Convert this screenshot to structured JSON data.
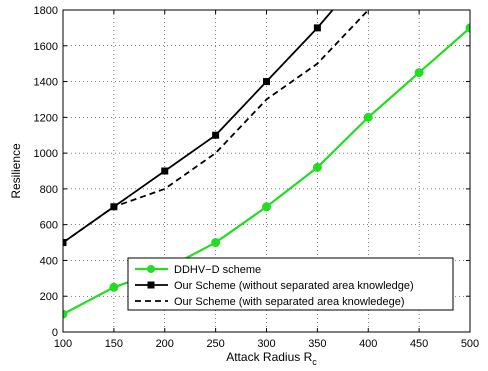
{
  "chart_data": {
    "type": "line",
    "xlabel": "Attack Radius R",
    "xlabel_subscript": "c",
    "ylabel": "Resilience",
    "xlim": [
      100,
      500
    ],
    "ylim": [
      0,
      1800
    ],
    "xticks": [
      100,
      150,
      200,
      250,
      300,
      350,
      400,
      450,
      500
    ],
    "yticks": [
      0,
      200,
      400,
      600,
      800,
      1000,
      1200,
      1400,
      1600,
      1800
    ],
    "grid": "dotted",
    "legend_position": "bottom-center",
    "series": [
      {
        "name": "DDHV−D scheme",
        "color": "#22dd22",
        "style": "solid",
        "marker": "circle",
        "x": [
          100,
          150,
          200,
          250,
          300,
          350,
          400,
          450,
          500
        ],
        "y": [
          100,
          250,
          350,
          500,
          700,
          920,
          1200,
          1450,
          1700
        ]
      },
      {
        "name": "Our Scheme (without separated area knowledge)",
        "color": "#000000",
        "style": "solid",
        "marker": "square",
        "x": [
          100,
          150,
          200,
          250,
          300,
          350,
          380
        ],
        "y": [
          500,
          700,
          900,
          1100,
          1400,
          1700,
          1900
        ]
      },
      {
        "name": "Our Scheme (with separated area knowledege)",
        "color": "#000000",
        "style": "dashed",
        "marker": "none",
        "x": [
          100,
          150,
          200,
          250,
          300,
          350,
          400,
          420
        ],
        "y": [
          500,
          700,
          800,
          1000,
          1300,
          1500,
          1800,
          1950
        ]
      }
    ]
  }
}
